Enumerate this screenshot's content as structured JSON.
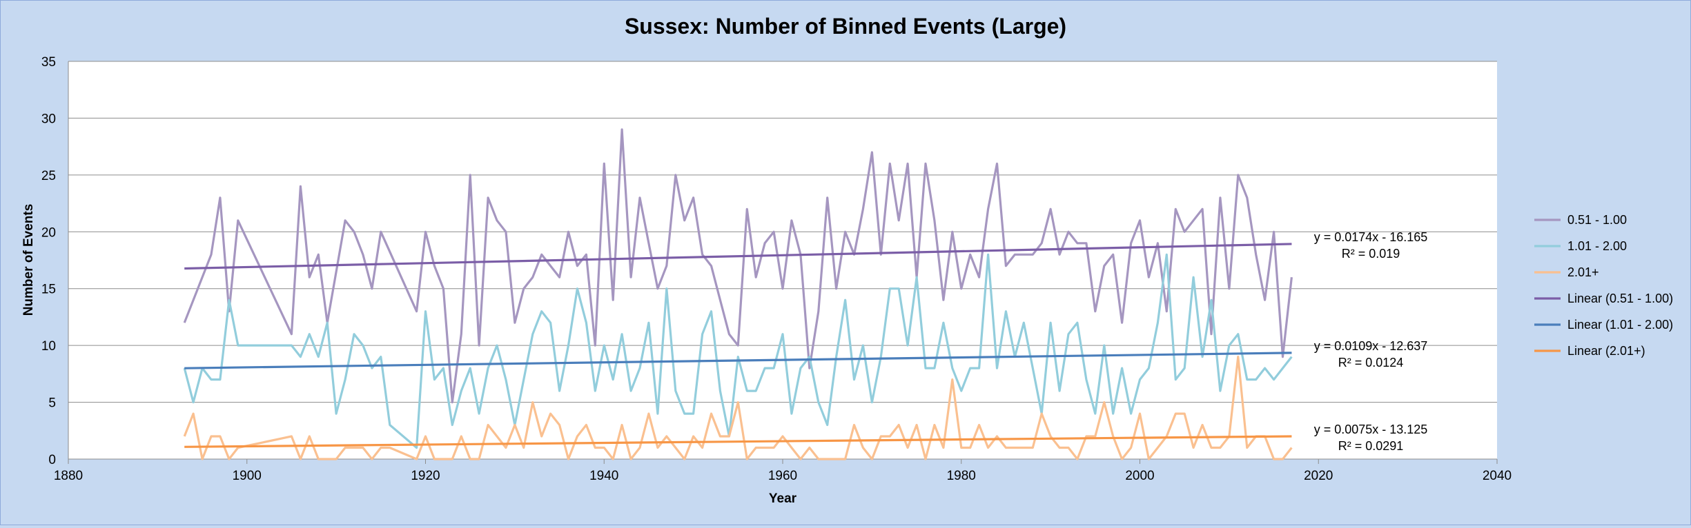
{
  "chart_data": {
    "type": "line",
    "title": "Sussex: Number of Binned Events (Large)",
    "xlabel": "Year",
    "ylabel": "Number of Events",
    "xlim": [
      1880,
      2040
    ],
    "ylim": [
      0,
      35
    ],
    "x_ticks": [
      "1880",
      "1900",
      "1920",
      "1940",
      "1960",
      "1980",
      "2000",
      "2020",
      "2040"
    ],
    "y_ticks": [
      "0",
      "5",
      "10",
      "15",
      "20",
      "25",
      "30",
      "35"
    ],
    "grid": "horizontal",
    "legend_position": "right",
    "series": [
      {
        "name": "0.51 - 1.00",
        "color": "#a596c0",
        "x": [
          1893,
          1896,
          1897,
          1898,
          1899,
          1905,
          1906,
          1907,
          1908,
          1909,
          1911,
          1912,
          1913,
          1914,
          1915,
          1919,
          1920,
          1921,
          1922,
          1923,
          1924,
          1925,
          1926,
          1927,
          1928,
          1929,
          1930,
          1931,
          1932,
          1933,
          1934,
          1935,
          1936,
          1937,
          1938,
          1939,
          1940,
          1941,
          1942,
          1943,
          1944,
          1945,
          1946,
          1947,
          1948,
          1949,
          1950,
          1951,
          1952,
          1953,
          1954,
          1955,
          1956,
          1957,
          1958,
          1959,
          1960,
          1961,
          1962,
          1963,
          1964,
          1965,
          1966,
          1967,
          1968,
          1969,
          1970,
          1971,
          1972,
          1973,
          1974,
          1975,
          1976,
          1977,
          1978,
          1979,
          1980,
          1981,
          1982,
          1983,
          1984,
          1985,
          1986,
          1987,
          1988,
          1989,
          1990,
          1991,
          1992,
          1993,
          1994,
          1995,
          1996,
          1997,
          1998,
          1999,
          2000,
          2001,
          2002,
          2003,
          2004,
          2005,
          2006,
          2007,
          2008,
          2009,
          2010,
          2011,
          2012,
          2013,
          2014,
          2015,
          2016,
          2017
        ],
        "y": [
          12,
          18,
          23,
          13,
          21,
          11,
          24,
          16,
          18,
          12,
          21,
          20,
          18,
          15,
          20,
          13,
          20,
          17,
          15,
          5,
          11,
          25,
          10,
          23,
          21,
          20,
          12,
          15,
          16,
          18,
          17,
          16,
          20,
          17,
          18,
          10,
          26,
          14,
          29,
          16,
          23,
          19,
          15,
          17,
          25,
          21,
          23,
          18,
          17,
          14,
          11,
          10,
          22,
          16,
          19,
          20,
          15,
          21,
          18,
          8,
          13,
          23,
          15,
          20,
          18,
          22,
          27,
          18,
          26,
          21,
          26,
          16,
          26,
          21,
          14,
          20,
          15,
          18,
          16,
          22,
          26,
          17,
          18,
          18,
          18,
          19,
          22,
          18,
          20,
          19,
          19,
          13,
          17,
          18,
          12,
          19,
          21,
          16,
          19,
          13,
          22,
          20,
          21,
          22,
          11,
          23,
          15,
          25,
          23,
          18,
          14,
          20,
          9,
          16
        ]
      },
      {
        "name": "1.01 - 2.00",
        "color": "#92cddc",
        "x": [
          1893,
          1894,
          1895,
          1896,
          1897,
          1898,
          1899,
          1905,
          1906,
          1907,
          1908,
          1909,
          1910,
          1911,
          1912,
          1913,
          1914,
          1915,
          1916,
          1919,
          1920,
          1921,
          1922,
          1923,
          1924,
          1925,
          1926,
          1927,
          1928,
          1929,
          1930,
          1931,
          1932,
          1933,
          1934,
          1935,
          1936,
          1937,
          1938,
          1939,
          1940,
          1941,
          1942,
          1943,
          1944,
          1945,
          1946,
          1947,
          1948,
          1949,
          1950,
          1951,
          1952,
          1953,
          1954,
          1955,
          1956,
          1957,
          1958,
          1959,
          1960,
          1961,
          1962,
          1963,
          1964,
          1965,
          1966,
          1967,
          1968,
          1969,
          1970,
          1971,
          1972,
          1973,
          1974,
          1975,
          1976,
          1977,
          1978,
          1979,
          1980,
          1981,
          1982,
          1983,
          1984,
          1985,
          1986,
          1987,
          1988,
          1989,
          1990,
          1991,
          1992,
          1993,
          1994,
          1995,
          1996,
          1997,
          1998,
          1999,
          2000,
          2001,
          2002,
          2003,
          2004,
          2005,
          2006,
          2007,
          2008,
          2009,
          2010,
          2011,
          2012,
          2013,
          2014,
          2015,
          2016,
          2017
        ],
        "y": [
          8,
          5,
          8,
          7,
          7,
          14,
          10,
          10,
          9,
          11,
          9,
          12,
          4,
          7,
          11,
          10,
          8,
          9,
          3,
          1,
          13,
          7,
          8,
          3,
          6,
          8,
          4,
          8,
          10,
          7,
          3,
          7,
          11,
          13,
          12,
          6,
          10,
          15,
          12,
          6,
          10,
          7,
          11,
          6,
          8,
          12,
          4,
          15,
          6,
          4,
          4,
          11,
          13,
          6,
          2,
          9,
          6,
          6,
          8,
          8,
          11,
          4,
          8,
          9,
          5,
          3,
          9,
          14,
          7,
          10,
          5,
          9,
          15,
          15,
          10,
          16,
          8,
          8,
          12,
          8,
          6,
          8,
          8,
          18,
          8,
          13,
          9,
          12,
          8,
          4,
          12,
          6,
          11,
          12,
          7,
          4,
          10,
          4,
          8,
          4,
          7,
          8,
          12,
          18,
          7,
          8,
          16,
          9,
          14,
          6,
          10,
          11,
          7,
          7,
          8,
          7,
          8,
          9
        ]
      },
      {
        "name": "2.01+",
        "color": "#fac090",
        "x": [
          1893,
          1894,
          1895,
          1896,
          1897,
          1898,
          1899,
          1905,
          1906,
          1907,
          1908,
          1909,
          1910,
          1911,
          1912,
          1913,
          1914,
          1915,
          1916,
          1919,
          1920,
          1921,
          1922,
          1923,
          1924,
          1925,
          1926,
          1927,
          1928,
          1929,
          1930,
          1931,
          1932,
          1933,
          1934,
          1935,
          1936,
          1937,
          1938,
          1939,
          1940,
          1941,
          1942,
          1943,
          1944,
          1945,
          1946,
          1947,
          1948,
          1949,
          1950,
          1951,
          1952,
          1953,
          1954,
          1955,
          1956,
          1957,
          1958,
          1959,
          1960,
          1961,
          1962,
          1963,
          1964,
          1965,
          1966,
          1967,
          1968,
          1969,
          1970,
          1971,
          1972,
          1973,
          1974,
          1975,
          1976,
          1977,
          1978,
          1979,
          1980,
          1981,
          1982,
          1983,
          1984,
          1985,
          1986,
          1987,
          1988,
          1989,
          1990,
          1991,
          1992,
          1993,
          1994,
          1995,
          1996,
          1997,
          1998,
          1999,
          2000,
          2001,
          2002,
          2003,
          2004,
          2005,
          2006,
          2007,
          2008,
          2009,
          2010,
          2011,
          2012,
          2013,
          2014,
          2015,
          2016,
          2017
        ],
        "y": [
          2,
          4,
          0,
          2,
          2,
          0,
          1,
          2,
          0,
          2,
          0,
          0,
          0,
          1,
          1,
          1,
          0,
          1,
          1,
          0,
          2,
          0,
          0,
          0,
          2,
          0,
          0,
          3,
          2,
          1,
          3,
          1,
          5,
          2,
          4,
          3,
          0,
          2,
          3,
          1,
          1,
          0,
          3,
          0,
          1,
          4,
          1,
          2,
          1,
          0,
          2,
          1,
          4,
          2,
          2,
          5,
          0,
          1,
          1,
          1,
          2,
          1,
          0,
          1,
          0,
          0,
          0,
          0,
          3,
          1,
          0,
          2,
          2,
          3,
          1,
          3,
          0,
          3,
          1,
          7,
          1,
          1,
          3,
          1,
          2,
          1,
          1,
          1,
          1,
          4,
          2,
          1,
          1,
          0,
          2,
          2,
          5,
          2,
          0,
          1,
          4,
          0,
          1,
          2,
          4,
          4,
          1,
          3,
          1,
          1,
          2,
          9,
          1,
          2,
          2,
          0,
          0,
          1
        ]
      }
    ],
    "trendlines": [
      {
        "name": "Linear (0.51 - 1.00)",
        "color": "#7b5ea7",
        "slope": 0.0174,
        "intercept": -16.165,
        "equation": "y = 0.0174x - 16.165",
        "r2": "R² = 0.019"
      },
      {
        "name": "Linear (1.01 - 2.00)",
        "color": "#4a7ebb",
        "slope": 0.0109,
        "intercept": -12.637,
        "equation": "y = 0.0109x - 12.637",
        "r2": "R² = 0.0124"
      },
      {
        "name": "Linear (2.01+)",
        "color": "#f79646",
        "slope": 0.0075,
        "intercept": -13.125,
        "equation": "y = 0.0075x - 13.125",
        "r2": "R² = 0.0291"
      }
    ],
    "trend_x_range": [
      1893,
      2017
    ]
  }
}
